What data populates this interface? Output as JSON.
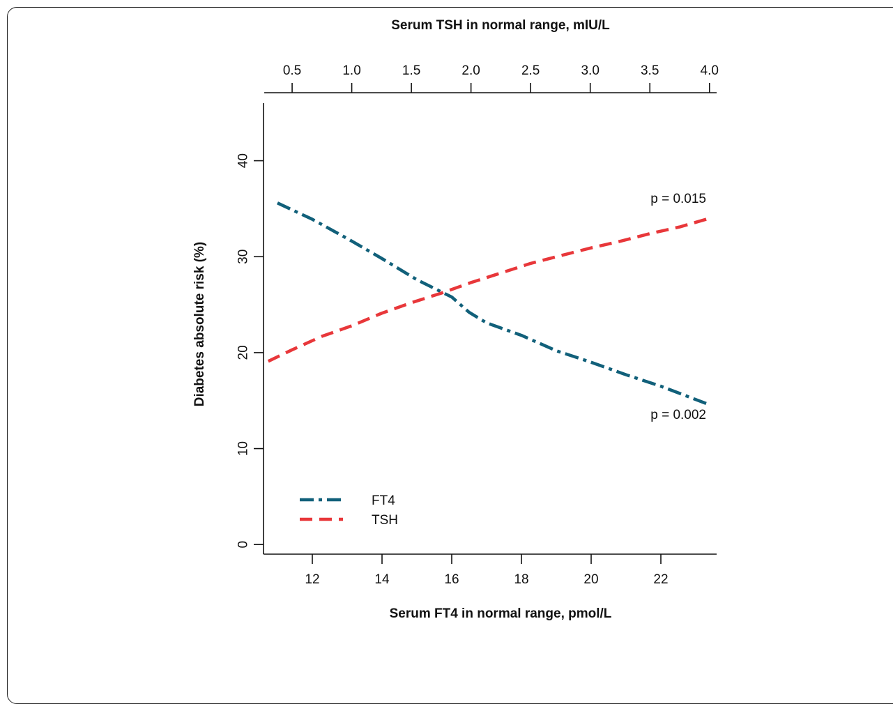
{
  "chart_data": {
    "type": "line",
    "title": "",
    "top_axis": {
      "label": "Serum TSH in normal range, mIU/L",
      "lim": [
        0.26,
        4.06
      ],
      "ticks": [
        "0.5",
        "1.0",
        "1.5",
        "2.0",
        "2.5",
        "3.0",
        "3.5",
        "4.0"
      ],
      "tick_values": [
        0.5,
        1.0,
        1.5,
        2.0,
        2.5,
        3.0,
        3.5,
        4.0
      ]
    },
    "bottom_axis": {
      "label": "Serum FT4 in normal range, pmol/L",
      "lim": [
        10.6,
        23.6
      ],
      "ticks": [
        "12",
        "14",
        "16",
        "18",
        "20",
        "22"
      ],
      "tick_values": [
        12,
        14,
        16,
        18,
        20,
        22
      ]
    },
    "y_axis": {
      "label": "Diabetes absolute risk (%)",
      "lim": [
        -1,
        46
      ],
      "ticks": [
        "0",
        "10",
        "20",
        "30",
        "40"
      ],
      "tick_values": [
        0,
        10,
        20,
        30,
        40
      ]
    },
    "grid": false,
    "legend_position": "bottom-left",
    "series": [
      {
        "name": "FT4",
        "axis": "bottom",
        "color": "#11607a",
        "style": "dash-dot",
        "x": [
          11.0,
          12.0,
          13.0,
          14.0,
          15.0,
          16.0,
          16.5,
          17.0,
          18.0,
          19.0,
          20.0,
          21.0,
          22.0,
          23.3
        ],
        "y": [
          35.6,
          33.9,
          31.9,
          29.8,
          27.6,
          25.8,
          24.2,
          23.1,
          21.8,
          20.2,
          19.0,
          17.7,
          16.5,
          14.7
        ]
      },
      {
        "name": "TSH",
        "axis": "top",
        "color": "#e8373a",
        "style": "dashed",
        "x": [
          0.3,
          0.5,
          0.75,
          1.0,
          1.25,
          1.5,
          1.75,
          2.0,
          2.25,
          2.5,
          2.75,
          3.0,
          3.25,
          3.5,
          3.75,
          4.0
        ],
        "y": [
          19.1,
          20.3,
          21.7,
          22.8,
          24.1,
          25.2,
          26.2,
          27.3,
          28.3,
          29.3,
          30.1,
          30.9,
          31.6,
          32.4,
          33.1,
          34.0
        ]
      }
    ],
    "annotations": [
      {
        "text": "p = 0.015",
        "x": 23.3,
        "y": 35.6
      },
      {
        "text": "p = 0.002",
        "x": 23.3,
        "y": 13.1
      }
    ]
  }
}
